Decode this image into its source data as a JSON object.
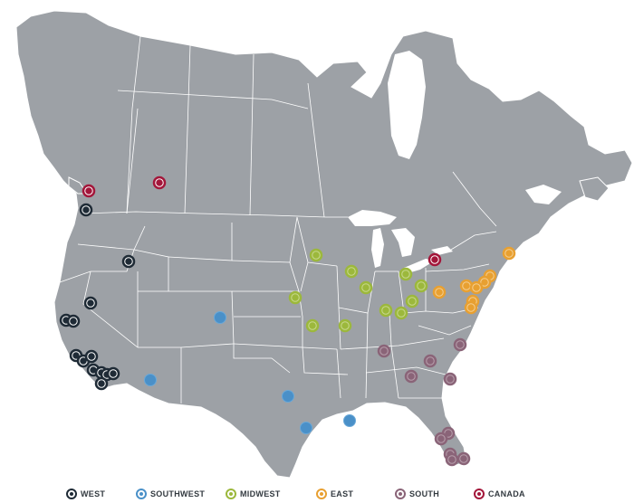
{
  "colors": {
    "land": "#9da1a6",
    "border": "#ffffff",
    "water": "#ffffff",
    "west": "#1f2b36",
    "southwest": "#4a90c8",
    "midwest": "#9cb83c",
    "east": "#e8a031",
    "south": "#8a6478",
    "canada": "#a3163a"
  },
  "legend": [
    {
      "key": "west",
      "label": "WEST"
    },
    {
      "key": "southwest",
      "label": "SOUTHWEST"
    },
    {
      "key": "midwest",
      "label": "MIDWEST"
    },
    {
      "key": "east",
      "label": "EAST"
    },
    {
      "key": "south",
      "label": "SOUTH"
    },
    {
      "key": "canada",
      "label": "CANADA"
    }
  ],
  "marker_icon": "target-ring-icon"
}
